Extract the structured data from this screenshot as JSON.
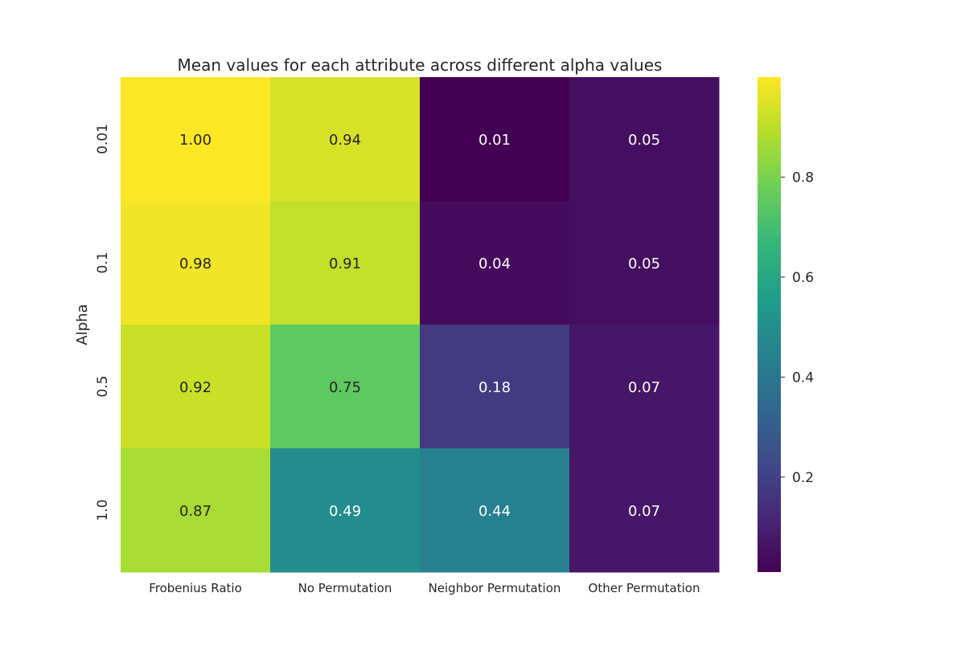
{
  "chart_data": {
    "type": "heatmap",
    "title": "Mean values for each attribute across different alpha values",
    "xlabel": "",
    "ylabel": "Alpha",
    "x_categories": [
      "Frobenius Ratio",
      "No Permutation",
      "Neighbor Permutation",
      "Other Permutation"
    ],
    "y_categories": [
      "0.01",
      "0.1",
      "0.5",
      "1.0"
    ],
    "values": [
      [
        1.0,
        0.94,
        0.01,
        0.05
      ],
      [
        0.98,
        0.91,
        0.04,
        0.05
      ],
      [
        0.92,
        0.75,
        0.18,
        0.07
      ],
      [
        0.87,
        0.49,
        0.44,
        0.07
      ]
    ],
    "value_labels": [
      [
        "1.00",
        "0.94",
        "0.01",
        "0.05"
      ],
      [
        "0.98",
        "0.91",
        "0.04",
        "0.05"
      ],
      [
        "0.92",
        "0.75",
        "0.18",
        "0.07"
      ],
      [
        "0.87",
        "0.49",
        "0.44",
        "0.07"
      ]
    ],
    "colormap": "viridis",
    "color_range": [
      0.01,
      1.0
    ],
    "colorbar_ticks": [
      0.2,
      0.4,
      0.6,
      0.8
    ],
    "colorbar_tick_labels": [
      "0.2",
      "0.4",
      "0.6",
      "0.8"
    ],
    "colorbar_position": "right",
    "grid": false
  }
}
